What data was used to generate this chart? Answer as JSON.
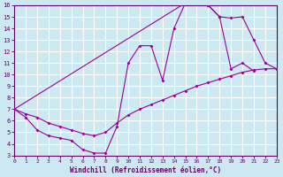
{
  "xlabel": "Windchill (Refroidissement éolien,°C)",
  "bg_color": "#cce8f0",
  "line_color": "#990099",
  "grid_color": "#ffffff",
  "xlim": [
    0,
    23
  ],
  "ylim": [
    3,
    16
  ],
  "xticks": [
    0,
    1,
    2,
    3,
    4,
    5,
    6,
    7,
    8,
    9,
    10,
    11,
    12,
    13,
    14,
    15,
    16,
    17,
    18,
    19,
    20,
    21,
    22,
    23
  ],
  "yticks": [
    3,
    4,
    5,
    6,
    7,
    8,
    9,
    10,
    11,
    12,
    13,
    14,
    15,
    16
  ],
  "line1_x": [
    0,
    1,
    2,
    3,
    4,
    5,
    6,
    7,
    8,
    9,
    10,
    11,
    12,
    13,
    14,
    15,
    16,
    17,
    18,
    19,
    20,
    21
  ],
  "line1_y": [
    7.0,
    6.3,
    5.2,
    4.7,
    4.5,
    4.3,
    3.5,
    3.2,
    3.2,
    5.5,
    11.0,
    12.5,
    12.5,
    9.5,
    14.0,
    16.2,
    16.5,
    16.0,
    15.0,
    10.5,
    11.0,
    10.3
  ],
  "line2_x": [
    0,
    1,
    2,
    3,
    4,
    5,
    6,
    7,
    8,
    9,
    10,
    11,
    12,
    13,
    14,
    15,
    16,
    17,
    18,
    19,
    20,
    21,
    22,
    23
  ],
  "line2_y": [
    7.0,
    6.6,
    6.3,
    5.8,
    5.5,
    5.2,
    4.9,
    4.7,
    5.0,
    5.8,
    6.5,
    7.0,
    7.4,
    7.8,
    8.2,
    8.6,
    9.0,
    9.3,
    9.6,
    9.9,
    10.2,
    10.4,
    10.5,
    10.5
  ],
  "line3_x": [
    0,
    15,
    16,
    17,
    18,
    19,
    20,
    21,
    22,
    23
  ],
  "line3_y": [
    7.0,
    16.2,
    16.5,
    16.0,
    15.0,
    14.9,
    15.0,
    13.0,
    11.0,
    10.5
  ]
}
